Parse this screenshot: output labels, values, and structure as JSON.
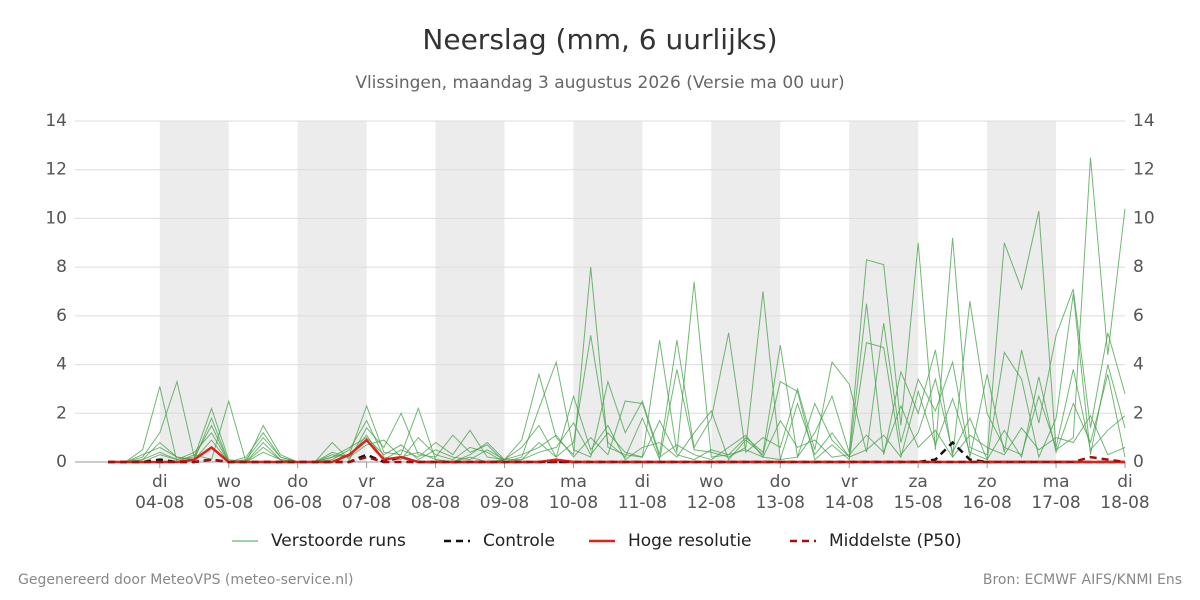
{
  "chart_data": {
    "type": "line",
    "title": "Neerslag (mm, 6 uurlijks)",
    "subtitle": "Vlissingen, maandag  3 augustus 2026 (Versie ma 00 uur)",
    "x": [
      0.25,
      0.5,
      0.75,
      1,
      1.25,
      1.5,
      1.75,
      2,
      2.25,
      2.5,
      2.75,
      3,
      3.25,
      3.5,
      3.75,
      4,
      4.25,
      4.5,
      4.75,
      5,
      5.25,
      5.5,
      5.75,
      6,
      6.25,
      6.5,
      6.75,
      7,
      7.25,
      7.5,
      7.75,
      8,
      8.25,
      8.5,
      8.75,
      9,
      9.25,
      9.5,
      9.75,
      10,
      10.25,
      10.5,
      10.75,
      11,
      11.25,
      11.5,
      11.75,
      12,
      12.25,
      12.5,
      12.75,
      13,
      13.25,
      13.5,
      13.75,
      14,
      14.25,
      14.5,
      14.75,
      15
    ],
    "xlim": [
      -0.23,
      15
    ],
    "xticks": [
      {
        "value": 1,
        "day": "di",
        "label": "04-08"
      },
      {
        "value": 2,
        "day": "wo",
        "label": "05-08"
      },
      {
        "value": 3,
        "day": "do",
        "label": "06-08"
      },
      {
        "value": 4,
        "day": "vr",
        "label": "07-08"
      },
      {
        "value": 5,
        "day": "za",
        "label": "08-08"
      },
      {
        "value": 6,
        "day": "zo",
        "label": "09-08"
      },
      {
        "value": 7,
        "day": "ma",
        "label": "10-08"
      },
      {
        "value": 8,
        "day": "di",
        "label": "11-08"
      },
      {
        "value": 9,
        "day": "wo",
        "label": "12-08"
      },
      {
        "value": 10,
        "day": "do",
        "label": "13-08"
      },
      {
        "value": 11,
        "day": "vr",
        "label": "14-08"
      },
      {
        "value": 12,
        "day": "za",
        "label": "15-08"
      },
      {
        "value": 13,
        "day": "zo",
        "label": "16-08"
      },
      {
        "value": 14,
        "day": "ma",
        "label": "17-08"
      },
      {
        "value": 15,
        "day": "di",
        "label": "18-08"
      }
    ],
    "ylim": [
      0,
      14
    ],
    "yticks": [
      0,
      2,
      4,
      6,
      8,
      10,
      12,
      14
    ],
    "y2lim": [
      0,
      14
    ],
    "y2ticks": [
      0,
      2,
      4,
      6,
      8,
      10,
      12,
      14
    ],
    "grid": true,
    "ensemble": {
      "name": "Verstoorde runs",
      "color": "#43a047",
      "members": [
        [
          0,
          0,
          0.5,
          3.1,
          0,
          0.3,
          0.1,
          2.5,
          0,
          0.8,
          0.1,
          0,
          0,
          0.2,
          0.3,
          2.3,
          0.4,
          0.3,
          2.2,
          0.1,
          0,
          0.2,
          0,
          0.1,
          0.9,
          3.6,
          1.0,
          0.3,
          8.0,
          0.6,
          0.3,
          0.2,
          5.0,
          0.4,
          7.4,
          0.2,
          0.3,
          1.0,
          0.4,
          4.8,
          0.2,
          1.2,
          2.7,
          0.4,
          8.3,
          8.1,
          1.5,
          9.0,
          0.5,
          9.2,
          0.6,
          0.3,
          9.0,
          7.1,
          10.3,
          0.5,
          1.0,
          12.5,
          4.4,
          10.4
        ],
        [
          0,
          0,
          0.2,
          1.2,
          3.3,
          0.2,
          2.2,
          0.1,
          0,
          1.5,
          0.3,
          0,
          0,
          0.8,
          0.1,
          1.4,
          0.6,
          2.0,
          0.3,
          0.2,
          1.1,
          0.4,
          0.7,
          0,
          0.2,
          2.2,
          4.1,
          0.5,
          0.2,
          3.3,
          1.2,
          2.5,
          0.3,
          5.0,
          0.6,
          1.8,
          5.3,
          0.4,
          1.0,
          0.6,
          3.0,
          0.5,
          4.1,
          3.2,
          0.4,
          5.7,
          0.8,
          3.4,
          2.1,
          4.1,
          0.2,
          3.6,
          0.4,
          4.6,
          1.6,
          5.2,
          7.1,
          1.4,
          5.3,
          2.8
        ],
        [
          0,
          0,
          0.1,
          0.8,
          0.2,
          0.1,
          1.8,
          0,
          0.1,
          1.0,
          0.2,
          0,
          0,
          0.3,
          0.2,
          1.1,
          0.1,
          0.5,
          0.2,
          0.8,
          0.3,
          1.3,
          0.2,
          0.1,
          0.6,
          1.5,
          0.2,
          0.8,
          5.2,
          0.8,
          0.2,
          1.8,
          0.1,
          3.8,
          0.5,
          0.4,
          0.2,
          0.6,
          7.0,
          0.1,
          0.2,
          2.4,
          0.9,
          0.2,
          6.5,
          0.3,
          3.7,
          2.0,
          4.6,
          0.2,
          6.6,
          2.0,
          0.6,
          0.3,
          2.7,
          0.6,
          3.8,
          0.5,
          1.3,
          1.9
        ],
        [
          0,
          0,
          0,
          0.3,
          0.1,
          0.4,
          1.2,
          0,
          0,
          0.6,
          0.1,
          0,
          0,
          0.1,
          0.5,
          1.7,
          0.2,
          0.1,
          1.0,
          0.3,
          0.1,
          0.6,
          0.4,
          0,
          0.1,
          0.8,
          0.2,
          2.7,
          0.5,
          1.5,
          0.1,
          0.6,
          0.8,
          0.2,
          1.2,
          2.1,
          0.1,
          0.9,
          0.3,
          3.3,
          2.9,
          0.1,
          0.7,
          0.1,
          4.9,
          4.7,
          0.3,
          1.2,
          3.4,
          0.4,
          1.8,
          0.1,
          4.5,
          3.4,
          0.2,
          1.8,
          6.9,
          0.3,
          4.0,
          1.4
        ],
        [
          0,
          0,
          0.3,
          0.6,
          0.2,
          0.1,
          0.9,
          0,
          0.2,
          1.2,
          0.2,
          0,
          0,
          0.4,
          0.2,
          0.7,
          0.9,
          0.2,
          0.4,
          0.1,
          0,
          0.3,
          0.8,
          0.1,
          0.3,
          0.6,
          1.1,
          0.2,
          1.0,
          0.3,
          2.5,
          2.4,
          0.2,
          0.7,
          0.3,
          0.1,
          0.6,
          1.1,
          0.2,
          0.1,
          2.4,
          0.3,
          1.2,
          0.2,
          0.5,
          1.1,
          0.2,
          2.9,
          0.7,
          2.6,
          0.4,
          0.1,
          1.3,
          0.2,
          3.5,
          0.4,
          2.4,
          0.8,
          3.6,
          0.2
        ],
        [
          0,
          0,
          0.1,
          0.4,
          0.1,
          0.2,
          1.5,
          0,
          0,
          0.4,
          0.1,
          0,
          0,
          0.2,
          0.6,
          1.0,
          0.3,
          0.7,
          0.1,
          0.5,
          0.2,
          0.1,
          0.5,
          0.1,
          0.1,
          0.4,
          0.6,
          1.6,
          0.3,
          1.2,
          0.4,
          0.2,
          1.7,
          0.3,
          0.1,
          0.5,
          0.3,
          0.5,
          0.2,
          1.7,
          0.6,
          0.9,
          0.2,
          0.3,
          1.1,
          0.4,
          2.3,
          0.6,
          1.3,
          0.2,
          1.1,
          0.6,
          0.3,
          1.4,
          0.5,
          1.0,
          0.8,
          1.9,
          0.3,
          0.6
        ]
      ]
    },
    "series": [
      {
        "name": "Controle",
        "color": "#111111",
        "dash": true,
        "values": [
          0,
          0,
          0,
          0.1,
          0,
          0,
          0.1,
          0,
          0,
          0,
          0,
          0,
          0,
          0,
          0,
          0.3,
          0,
          0.2,
          0,
          0,
          0,
          0,
          0,
          0,
          0,
          0,
          0,
          0,
          0,
          0,
          0,
          0,
          0,
          0,
          0,
          0,
          0,
          0,
          0,
          0,
          0,
          0,
          0,
          0,
          0,
          0,
          0,
          0,
          0.1,
          0.8,
          0.1,
          0,
          0,
          0,
          0,
          0,
          0,
          0,
          0,
          0
        ]
      },
      {
        "name": "Hoge resolutie",
        "color": "#e0201b",
        "dash": false,
        "values": [
          0,
          0,
          0,
          0,
          0,
          0.1,
          0.6,
          0,
          0,
          0,
          0,
          0,
          0,
          0,
          0.3,
          0.9,
          0.1,
          0.2,
          0,
          0,
          0,
          0,
          0,
          0,
          0,
          0,
          0.1,
          0,
          0,
          0,
          0,
          0,
          0,
          0,
          0,
          0,
          0,
          0,
          0,
          0,
          0,
          0,
          0,
          0,
          0,
          0,
          0,
          0,
          0,
          0,
          0,
          0,
          0,
          0,
          0,
          0,
          0,
          0,
          0,
          0
        ]
      },
      {
        "name": "Middelste (P50)",
        "color": "#a01010",
        "dash": true,
        "values": [
          0,
          0,
          0,
          0,
          0,
          0,
          0.1,
          0,
          0,
          0,
          0,
          0,
          0,
          0,
          0,
          0.2,
          0,
          0,
          0,
          0,
          0,
          0,
          0,
          0,
          0,
          0,
          0,
          0,
          0,
          0,
          0,
          0,
          0,
          0,
          0,
          0,
          0,
          0,
          0,
          0,
          0,
          0,
          0,
          0,
          0,
          0,
          0,
          0,
          0,
          0,
          0,
          0,
          0,
          0,
          0,
          0,
          0,
          0.2,
          0.1,
          0
        ]
      }
    ],
    "footer_left": "Gegenereerd door MeteoVPS (meteo-service.nl)",
    "footer_right": "Bron: ECMWF AIFS/KNMI Ens"
  }
}
